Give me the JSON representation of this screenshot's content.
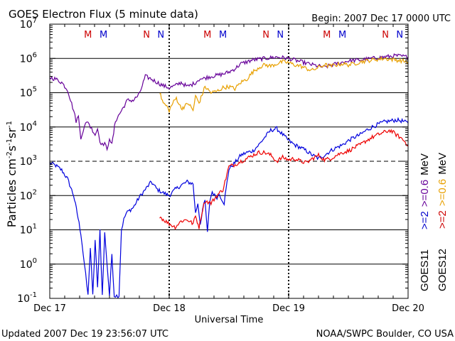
{
  "chart_data": {
    "type": "line",
    "title": "GOES Electron Flux (5 minute data)",
    "begin_label": "Begin: 2007 Dec 17 0000 UTC",
    "xlabel": "Universal Time",
    "ylabel_parts": {
      "base": "Particles cm",
      "e1": "-2",
      "s": "s",
      "e2": "-1",
      "sr": "sr",
      "e3": "-1"
    },
    "yscale": "log",
    "ylim_exp": [
      -1,
      7
    ],
    "ytick_exps": [
      "7",
      "6",
      "5",
      "4",
      "3",
      "2",
      "1",
      "0",
      "-1"
    ],
    "xlim_days": [
      0,
      3
    ],
    "xtick_labels": [
      "Dec 17",
      "Dec 18",
      "Dec 19",
      "Dec 20"
    ],
    "threshold_exp": 3,
    "grid": "horizontal lines at each decade, dashed at 10^3; dotted vertical day lines",
    "footer_left": "Updated 2007 Dec 19 23:56:07 UTC",
    "footer_right": "NOAA/SWPC Boulder, CO USA",
    "markers": [
      {
        "label": "M",
        "day": 0.32,
        "color": "#cc0000"
      },
      {
        "label": "M",
        "day": 0.45,
        "color": "#0000cc"
      },
      {
        "label": "N",
        "day": 0.81,
        "color": "#cc0000"
      },
      {
        "label": "N",
        "day": 0.93,
        "color": "#0000cc"
      },
      {
        "label": "M",
        "day": 1.32,
        "color": "#cc0000"
      },
      {
        "label": "M",
        "day": 1.45,
        "color": "#0000cc"
      },
      {
        "label": "N",
        "day": 1.81,
        "color": "#cc0000"
      },
      {
        "label": "N",
        "day": 1.93,
        "color": "#0000cc"
      },
      {
        "label": "M",
        "day": 2.32,
        "color": "#cc0000"
      },
      {
        "label": "M",
        "day": 2.45,
        "color": "#0000cc"
      },
      {
        "label": "N",
        "day": 2.81,
        "color": "#cc0000"
      },
      {
        "label": "N",
        "day": 2.93,
        "color": "#0000cc"
      }
    ],
    "right_labels": [
      {
        "text": "GOES11",
        "color": "#000000"
      },
      {
        "text": ">=2",
        "color": "#0000cc"
      },
      {
        "text": ">=0.6",
        "color": "#660099"
      },
      {
        "text": "MeV",
        "color": "#000000"
      },
      {
        "text": "GOES12",
        "color": "#000000"
      },
      {
        "text": ">=2",
        "color": "#cc0000"
      },
      {
        "text": ">=0.6",
        "color": "#e8a000"
      },
      {
        "text": "MeV",
        "color": "#000000"
      }
    ],
    "series": [
      {
        "name": "GOES11 >=2 MeV",
        "color": "#0000dd",
        "x": [
          0.0,
          0.05,
          0.1,
          0.15,
          0.2,
          0.23,
          0.26,
          0.28,
          0.3,
          0.32,
          0.34,
          0.36,
          0.38,
          0.4,
          0.42,
          0.44,
          0.46,
          0.48,
          0.5,
          0.52,
          0.54,
          0.56,
          0.58,
          0.6,
          0.62,
          0.64,
          0.66,
          0.7,
          0.75,
          0.8,
          0.85,
          0.9,
          0.95,
          1.0,
          1.05,
          1.1,
          1.15,
          1.2,
          1.22,
          1.24,
          1.26,
          1.28,
          1.3,
          1.32,
          1.34,
          1.36,
          1.38,
          1.4,
          1.42,
          1.44,
          1.46,
          1.5,
          1.55,
          1.6,
          1.65,
          1.7,
          1.75,
          1.8,
          1.85,
          1.9,
          1.95,
          2.0,
          2.05,
          2.1,
          2.15,
          2.2,
          2.25,
          2.3,
          2.35,
          2.4,
          2.45,
          2.5,
          2.55,
          2.6,
          2.65,
          2.7,
          2.75,
          2.8,
          2.85,
          2.9,
          2.95,
          3.0
        ],
        "y": [
          900,
          750,
          550,
          300,
          100,
          30,
          8,
          2,
          0.5,
          0.12,
          3,
          0.12,
          5,
          0.2,
          10,
          0.12,
          8,
          1,
          0.12,
          2,
          0.12,
          0.12,
          0.12,
          10,
          20,
          30,
          35,
          45,
          90,
          150,
          250,
          150,
          120,
          100,
          150,
          200,
          250,
          220,
          30,
          60,
          15,
          40,
          70,
          8,
          70,
          130,
          100,
          90,
          110,
          80,
          60,
          600,
          900,
          1500,
          1800,
          2000,
          3000,
          5000,
          8000,
          9000,
          6000,
          4000,
          3000,
          2500,
          2000,
          1500,
          1200,
          1500,
          2000,
          2500,
          3000,
          4000,
          5000,
          6000,
          8000,
          10000,
          12000,
          14000,
          15000,
          16000,
          15000,
          13000
        ]
      },
      {
        "name": "GOES11 >=0.6 MeV",
        "color": "#660099",
        "x": [
          0.0,
          0.05,
          0.1,
          0.15,
          0.2,
          0.22,
          0.24,
          0.26,
          0.28,
          0.3,
          0.32,
          0.34,
          0.36,
          0.38,
          0.4,
          0.42,
          0.44,
          0.46,
          0.48,
          0.5,
          0.52,
          0.55,
          0.6,
          0.65,
          0.7,
          0.75,
          0.8,
          0.85,
          0.9,
          0.95,
          1.0,
          1.05,
          1.1,
          1.15,
          1.2,
          1.22,
          1.24,
          1.26,
          1.28,
          1.3,
          1.35,
          1.4,
          1.45,
          1.5,
          1.55,
          1.6,
          1.7,
          1.8,
          1.9,
          2.0,
          2.1,
          2.2,
          2.3,
          2.4,
          2.5,
          2.6,
          2.7,
          2.8,
          2.9,
          3.0
        ],
        "y": [
          280000,
          250000,
          200000,
          120000,
          30000,
          15000,
          20000,
          5000,
          8000,
          12000,
          15000,
          10000,
          8000,
          6000,
          9000,
          4000,
          3000,
          3500,
          2000,
          5000,
          3000,
          15000,
          30000,
          60000,
          60000,
          90000,
          300000,
          250000,
          200000,
          160000,
          140000,
          160000,
          200000,
          150000,
          180000,
          200000,
          230000,
          260000,
          250000,
          270000,
          300000,
          320000,
          350000,
          400000,
          500000,
          700000,
          900000,
          1000000,
          1100000,
          1000000,
          800000,
          650000,
          550000,
          700000,
          850000,
          900000,
          1000000,
          1100000,
          1200000,
          1100000
        ]
      },
      {
        "name": "GOES12 >=2 MeV",
        "color": "#ee0000",
        "x": [
          0.92,
          0.95,
          1.0,
          1.05,
          1.1,
          1.15,
          1.2,
          1.22,
          1.25,
          1.28,
          1.3,
          1.35,
          1.4,
          1.45,
          1.5,
          1.55,
          1.6,
          1.65,
          1.7,
          1.75,
          1.8,
          1.85,
          1.9,
          1.95,
          2.0,
          2.05,
          2.1,
          2.15,
          2.2,
          2.25,
          2.3,
          2.35,
          2.4,
          2.45,
          2.5,
          2.55,
          2.6,
          2.65,
          2.7,
          2.75,
          2.8,
          2.85,
          2.9,
          2.95,
          3.0
        ],
        "y": [
          25,
          20,
          15,
          12,
          18,
          20,
          15,
          25,
          12,
          40,
          70,
          60,
          100,
          150,
          700,
          800,
          1000,
          1200,
          1500,
          1800,
          1800,
          1500,
          1000,
          1300,
          1100,
          1200,
          1000,
          900,
          1200,
          1500,
          1100,
          1200,
          1500,
          1800,
          2000,
          2500,
          3000,
          4000,
          5000,
          6000,
          7000,
          8000,
          6000,
          4500,
          3000
        ]
      },
      {
        "name": "GOES12 >=0.6 MeV",
        "color": "#e8a000",
        "x": [
          0.92,
          0.95,
          0.98,
          1.0,
          1.03,
          1.06,
          1.1,
          1.13,
          1.16,
          1.2,
          1.22,
          1.25,
          1.3,
          1.35,
          1.4,
          1.45,
          1.5,
          1.55,
          1.6,
          1.65,
          1.7,
          1.75,
          1.8,
          1.85,
          1.9,
          1.95,
          2.0,
          2.05,
          2.1,
          2.15,
          2.2,
          2.25,
          2.3,
          2.35,
          2.4,
          2.45,
          2.5,
          2.55,
          2.6,
          2.7,
          2.8,
          2.9,
          3.0
        ],
        "y": [
          100000,
          50000,
          40000,
          30000,
          50000,
          70000,
          35000,
          40000,
          50000,
          30000,
          80000,
          50000,
          150000,
          100000,
          110000,
          140000,
          150000,
          130000,
          200000,
          250000,
          400000,
          550000,
          650000,
          600000,
          700000,
          800000,
          750000,
          650000,
          600000,
          500000,
          450000,
          550000,
          650000,
          600000,
          650000,
          700000,
          650000,
          700000,
          800000,
          900000,
          1000000,
          900000,
          800000
        ]
      }
    ]
  }
}
